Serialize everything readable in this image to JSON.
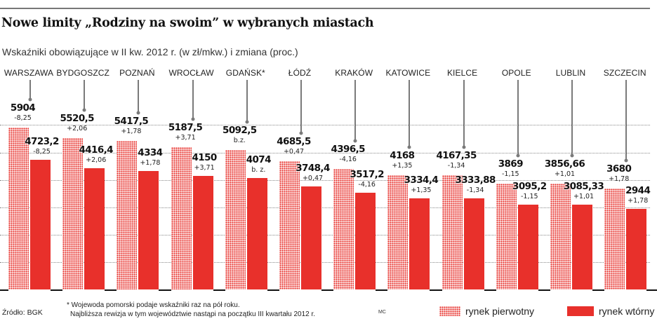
{
  "header": {
    "title": "Nowe limity „Rodziny na swoim” w wybranych miastach",
    "subtitle": "Wskaźniki obowiązujące w II kw. 2012 r. (w zł/mkw.) i zmiana (proc.)"
  },
  "footer": {
    "source": "Źródło: BGK",
    "footnote_line1": "* Wojewoda pomorski podaje wskaźniki raz na pół roku.",
    "footnote_line2": "Najbliższa rewizja w tym województwie nastąpi na początku III kwartału 2012 r.",
    "credit": "MC"
  },
  "legend": {
    "primary": "rynek pierwotny",
    "secondary": "rynek wtórny"
  },
  "colors": {
    "secondary_bar": "#e8302b",
    "primary_pattern_dot": "#e8332e",
    "primary_pattern_bg": "#fbe3e3",
    "gridline": "#8a8a8a",
    "leader": "#7a7a7a"
  },
  "chart_data": {
    "type": "bar",
    "title": "Nowe limity „Rodziny na swoim” w wybranych miastach",
    "subtitle": "Wskaźniki obowiązujące w II kw. 2012 r. (w zł/mkw.) i zmiana (proc.)",
    "xlabel": "",
    "ylabel": "zł/mkw.",
    "ylim": [
      0,
      6000
    ],
    "grid": true,
    "gridlines": [
      1000,
      2000,
      3000,
      4000,
      5000,
      6000
    ],
    "legend_position": "bottom-right",
    "categories": [
      "WARSZAWA",
      "BYDGOSZCZ",
      "POZNAŃ",
      "WROCŁAW",
      "GDAŃSK*",
      "ŁÓDŹ",
      "KRAKÓW",
      "KATOWICE",
      "KIELCE",
      "OPOLE",
      "LUBLIN",
      "SZCZECIN"
    ],
    "series": [
      {
        "name": "rynek pierwotny",
        "values": [
          5904,
          5520.5,
          5417.5,
          5187.5,
          5092.5,
          4685.5,
          4396.5,
          4168,
          4167.35,
          3869,
          3856.66,
          3680
        ],
        "labels": [
          "5904",
          "5520,5",
          "5417,5",
          "5187,5",
          "5092,5",
          "4685,5",
          "4396,5",
          "4168",
          "4167,35",
          "3869",
          "3856,66",
          "3680"
        ],
        "change_pct": [
          "-8,25",
          "+2,06",
          "+1,78",
          "+3,71",
          "b.z.",
          "+0,47",
          "-4,16",
          "+1,35",
          "-1,34",
          "-1,15",
          "+1,01",
          "+1,78"
        ]
      },
      {
        "name": "rynek wtórny",
        "values": [
          4723.2,
          4416.4,
          4334,
          4150,
          4074,
          3748.4,
          3517.2,
          3334.4,
          3333.88,
          3095.2,
          3085.33,
          2944
        ],
        "labels": [
          "4723,2",
          "4416,4",
          "4334",
          "4150",
          "4074",
          "3748,4",
          "3517,2",
          "3334,4",
          "3333,88",
          "3095,2",
          "3085,33",
          "2944"
        ],
        "change_pct": [
          "-8,25",
          "+2,06",
          "+1,78",
          "+3,71",
          "b. z.",
          "+0,47",
          "-4,16",
          "+1,35",
          "-1,34",
          "-1,15",
          "+1,01",
          "+1,78"
        ]
      }
    ],
    "annotations": [
      "* Wojewoda pomorski podaje wskaźniki raz na pół roku."
    ]
  }
}
